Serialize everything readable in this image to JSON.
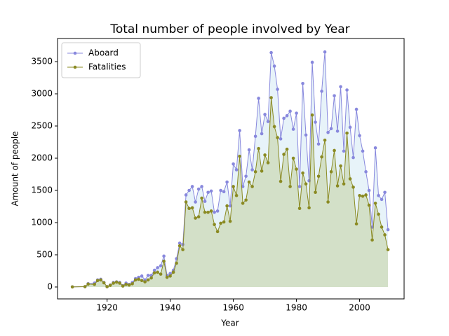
{
  "chart_data": {
    "type": "area_line",
    "title": "Total number of people involved by Year",
    "x_label": "Year",
    "y_label": "Amount of people",
    "x": [
      1909,
      1913,
      1914,
      1916,
      1917,
      1918,
      1919,
      1920,
      1921,
      1922,
      1923,
      1924,
      1925,
      1926,
      1927,
      1928,
      1929,
      1930,
      1931,
      1932,
      1933,
      1934,
      1935,
      1936,
      1937,
      1938,
      1939,
      1940,
      1941,
      1942,
      1943,
      1944,
      1945,
      1946,
      1947,
      1948,
      1949,
      1950,
      1951,
      1952,
      1953,
      1954,
      1955,
      1956,
      1957,
      1958,
      1959,
      1960,
      1961,
      1962,
      1963,
      1964,
      1965,
      1966,
      1967,
      1968,
      1969,
      1970,
      1971,
      1972,
      1973,
      1974,
      1975,
      1976,
      1977,
      1978,
      1979,
      1980,
      1981,
      1982,
      1983,
      1984,
      1985,
      1986,
      1987,
      1988,
      1989,
      1990,
      1991,
      1992,
      1993,
      1994,
      1995,
      1996,
      1997,
      1998,
      1999,
      2000,
      2001,
      2002,
      2003,
      2004,
      2005,
      2006,
      2007,
      2008,
      2009
    ],
    "series": [
      {
        "name": "Aboard",
        "color": "#8888dd",
        "fill_color": "#e3f1f8",
        "values": [
          2,
          5,
          51,
          60,
          110,
          120,
          70,
          5,
          30,
          70,
          80,
          70,
          20,
          60,
          40,
          70,
          130,
          150,
          170,
          110,
          180,
          180,
          260,
          300,
          330,
          480,
          180,
          210,
          260,
          440,
          680,
          660,
          1430,
          1500,
          1560,
          1320,
          1520,
          1560,
          1330,
          1470,
          1490,
          1160,
          1180,
          1500,
          1480,
          1630,
          1260,
          1910,
          1820,
          2430,
          1560,
          1720,
          2130,
          1820,
          2340,
          2930,
          2380,
          2680,
          2570,
          3640,
          3430,
          3070,
          2300,
          2620,
          2660,
          2730,
          2450,
          2700,
          1560,
          3160,
          2360,
          1650,
          3490,
          2560,
          2220,
          3040,
          3650,
          2400,
          2460,
          2970,
          2420,
          3110,
          2110,
          3060,
          2480,
          2010,
          2760,
          2350,
          2110,
          1790,
          1500,
          930,
          2160,
          1420,
          1360,
          1470,
          890
        ]
      },
      {
        "name": "Fatalities",
        "color": "#8a8a22",
        "fill_color": "#cfdcbf",
        "values": [
          1,
          5,
          45,
          40,
          100,
          110,
          65,
          5,
          25,
          60,
          75,
          60,
          15,
          40,
          30,
          50,
          110,
          120,
          100,
          80,
          110,
          140,
          220,
          230,
          200,
          400,
          150,
          170,
          230,
          370,
          640,
          580,
          1320,
          1220,
          1230,
          1070,
          1090,
          1380,
          1160,
          1160,
          1180,
          970,
          860,
          990,
          1010,
          1260,
          1020,
          1560,
          1420,
          2030,
          1300,
          1350,
          1630,
          1560,
          1790,
          2150,
          1800,
          2050,
          1930,
          2940,
          2490,
          2320,
          1640,
          2060,
          2140,
          1560,
          2000,
          1830,
          1220,
          1770,
          1600,
          1230,
          2670,
          1470,
          1720,
          2020,
          2280,
          1320,
          1790,
          2120,
          1570,
          1880,
          1600,
          2390,
          1680,
          1550,
          980,
          1420,
          1410,
          1430,
          1270,
          730,
          1300,
          1130,
          930,
          810,
          580
        ]
      }
    ],
    "xlim": [
      1904.3,
      2014.1
    ],
    "ylim": [
      -185,
      3859
    ],
    "xticks": [
      1920,
      1940,
      1960,
      1980,
      2000
    ],
    "yticks": [
      0,
      500,
      1000,
      1500,
      2000,
      2500,
      3000,
      3500
    ],
    "legend": "upper left"
  }
}
